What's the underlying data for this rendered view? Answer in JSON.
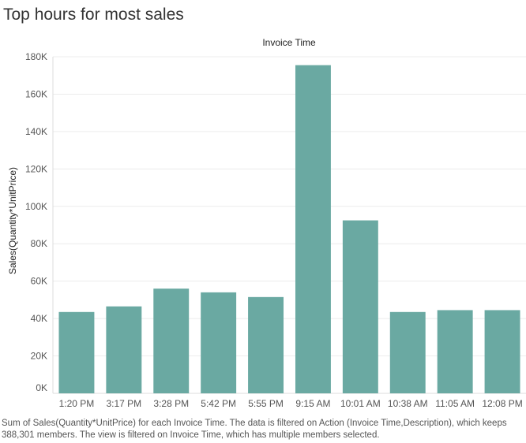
{
  "title": "Top hours for most sales",
  "caption": "Sum of Sales(Quantity*UnitPrice) for each Invoice Time. The data is filtered on Action (Invoice Time,Description), which keeps 388,301 members. The view is filtered on Invoice Time, which has multiple members selected.",
  "colors": {
    "bar": "#6aa9a2",
    "grid": "#ececec",
    "axis": "#dcdcdc"
  },
  "chart_data": {
    "type": "bar",
    "title": "Top hours for most sales",
    "xlabel": "Invoice Time",
    "ylabel": "Sales(Quantity*UnitPrice)",
    "categories": [
      "1:20 PM",
      "3:17 PM",
      "3:28 PM",
      "5:42 PM",
      "5:55 PM",
      "9:15 AM",
      "10:01 AM",
      "10:38 AM",
      "11:05 AM",
      "12:08 PM"
    ],
    "values": [
      43500,
      46500,
      56000,
      54000,
      51500,
      175500,
      92500,
      43500,
      44500,
      44500
    ],
    "ylim": [
      0,
      180000
    ],
    "yticks": [
      0,
      20000,
      40000,
      60000,
      80000,
      100000,
      120000,
      140000,
      160000,
      180000
    ],
    "ytick_labels": [
      "0K",
      "20K",
      "40K",
      "60K",
      "80K",
      "100K",
      "120K",
      "140K",
      "160K",
      "180K"
    ],
    "grid": true,
    "legend": "none"
  }
}
